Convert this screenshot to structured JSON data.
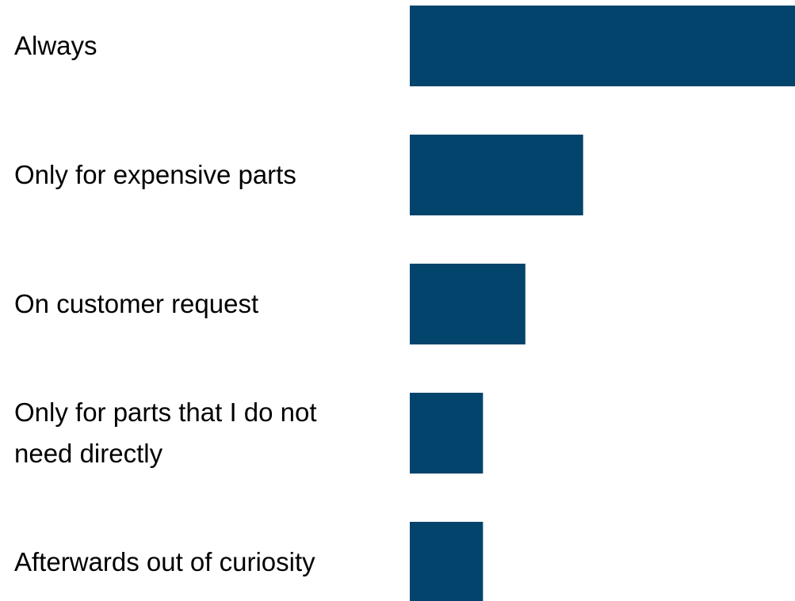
{
  "chart_data": {
    "type": "bar",
    "orientation": "horizontal",
    "categories": [
      "Always",
      "Only for expensive parts",
      "On customer request",
      "Only for parts that I do not need directly",
      "Afterwards out of curiosity"
    ],
    "label_lines": [
      [
        "Always"
      ],
      [
        "Only for expensive parts"
      ],
      [
        "On customer request"
      ],
      [
        "Only for parts that I do not",
        "need directly"
      ],
      [
        "Afterwards out of curiosity"
      ]
    ],
    "values": [
      100,
      45,
      30,
      19,
      19
    ],
    "xlim": [
      0,
      100
    ],
    "title": "",
    "xlabel": "",
    "ylabel": "",
    "grid": false,
    "legend": "none",
    "bar_color": "#02446b",
    "text_color": "#000000",
    "background": "#ffffff"
  }
}
